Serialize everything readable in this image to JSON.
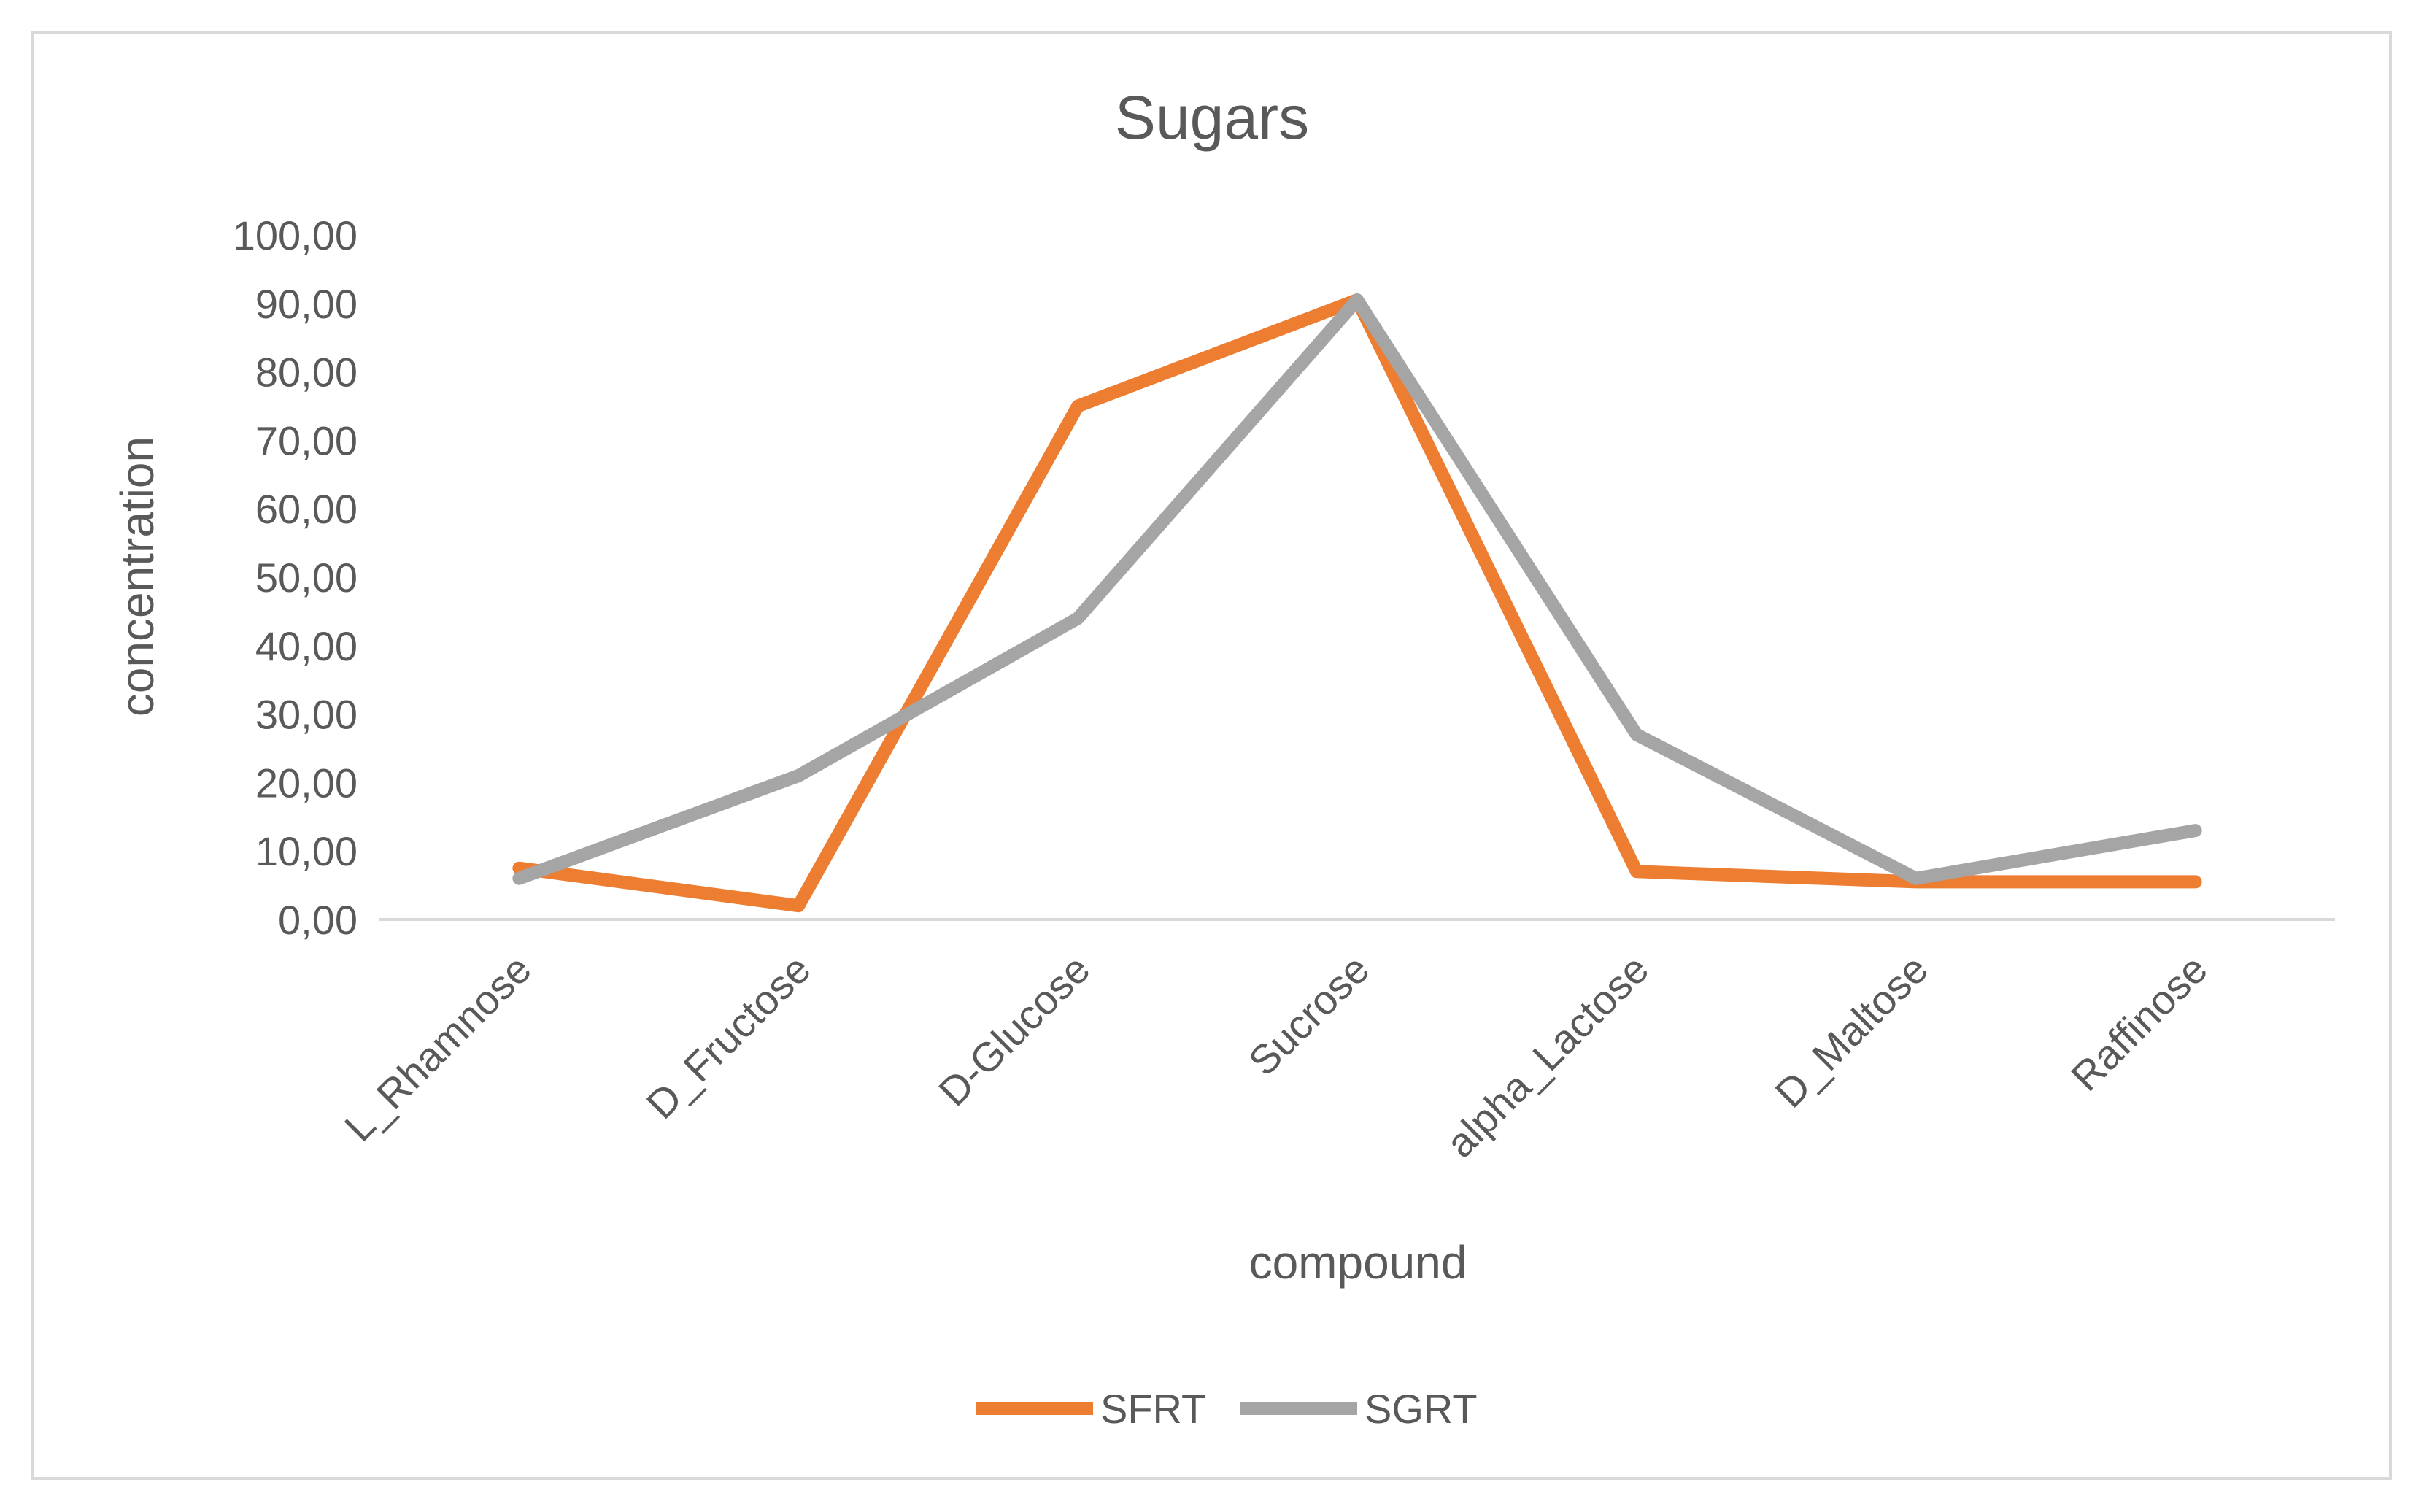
{
  "chart_data": {
    "type": "line",
    "title": "Sugars",
    "xlabel": "compound",
    "ylabel": "concentration",
    "categories": [
      "L_Rhamnose",
      "D_Fructose",
      "D-Glucose",
      "Sucrose",
      "alpha_Lactose",
      "D_Maltose",
      "Raffinose"
    ],
    "ylim": [
      0,
      100
    ],
    "yticks": [
      "0,00",
      "10,00",
      "20,00",
      "30,00",
      "40,00",
      "50,00",
      "60,00",
      "70,00",
      "80,00",
      "90,00",
      "100,00"
    ],
    "grid": false,
    "legend_position": "bottom",
    "series": [
      {
        "name": "SFRT",
        "color": "#ed7d31",
        "values": [
          7.5,
          2.0,
          75.0,
          90.5,
          7.0,
          5.5,
          5.5
        ]
      },
      {
        "name": "SGRT",
        "color": "#a5a5a5",
        "values": [
          6.0,
          21.0,
          44.0,
          90.5,
          27.0,
          6.0,
          13.0
        ]
      }
    ]
  }
}
